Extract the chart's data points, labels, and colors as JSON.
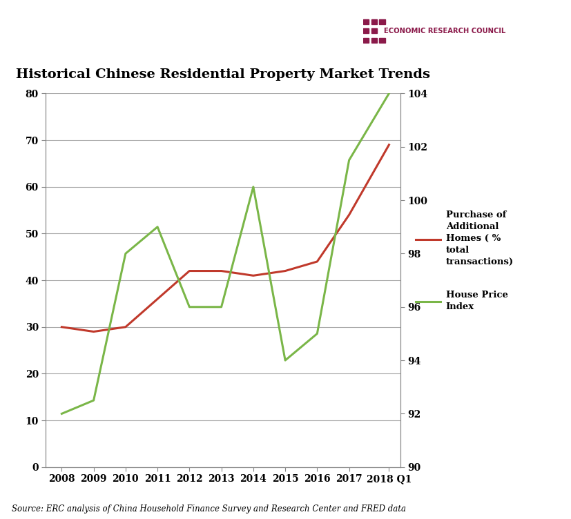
{
  "title": "Historical Chinese Residential Property Market Trends",
  "source_text": "Source: ERC analysis of China Household Finance Survey and Research Center and FRED data",
  "erc_text": "ECONOMIC RESEARCH COUNCIL",
  "x_labels": [
    "2008",
    "2009",
    "2010",
    "2011",
    "2012",
    "2013",
    "2014",
    "2015",
    "2016",
    "2017",
    "2018 Q1"
  ],
  "x_values": [
    2008,
    2009,
    2010,
    2011,
    2012,
    2013,
    2014,
    2015,
    2016,
    2017,
    2018.25
  ],
  "red_line": [
    30,
    29,
    30,
    36,
    42,
    42,
    41,
    42,
    44,
    54,
    69
  ],
  "green_line": [
    92.0,
    92.5,
    98.0,
    99.0,
    96.0,
    96.0,
    100.5,
    94.0,
    95.0,
    101.5,
    104.0
  ],
  "red_color": "#c0392b",
  "green_color": "#7ab648",
  "left_ylim": [
    0,
    80
  ],
  "left_yticks": [
    0,
    10,
    20,
    30,
    40,
    50,
    60,
    70,
    80
  ],
  "right_ylim": [
    90,
    104
  ],
  "right_yticks": [
    90,
    92,
    94,
    96,
    98,
    100,
    102,
    104
  ],
  "grid_color": "#aaaaaa",
  "bg_color": "#ffffff",
  "title_fontsize": 14,
  "erc_color": "#8b1a4a",
  "legend1_label": "Purchase of\nAdditional\nHomes ( %\ntotal\ntransactions)",
  "legend2_label": "House Price\nIndex"
}
